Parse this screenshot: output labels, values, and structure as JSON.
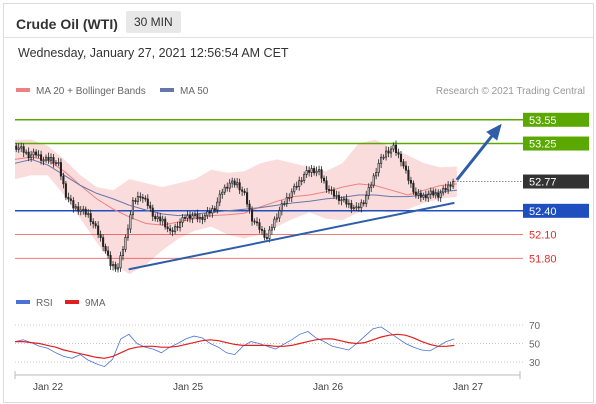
{
  "header": {
    "title": "Crude Oil (WTI)",
    "timeframe": "30 MIN",
    "datetime": "Wednesday, January 27, 2021 12:56:54 AM CET"
  },
  "legend": {
    "ma20_label": "MA 20 + Bollinger Bands",
    "ma50_label": "MA 50",
    "copyright": "Research © 2021 Trading Central"
  },
  "rsi_legend": {
    "rsi_label": "RSI",
    "ma9_label": "9MA"
  },
  "colors": {
    "target": "#5aa800",
    "pivot": "#1f4fbf",
    "support": "#e32b2b",
    "last_price": "#333333",
    "bollinger": "#f9d6d6",
    "ma20": "#ee8080",
    "ma50": "#6677aa",
    "arrow": "#2f5da8",
    "rsi": "#4a73d8",
    "rsi_ma": "#e02020"
  },
  "chart_data": [
    {
      "type": "candlestick",
      "title": "Crude Oil (WTI)",
      "x_tick_labels": [
        "Jan 22",
        "Jan 25",
        "Jan 26",
        "Jan 27"
      ],
      "ylim": [
        51.45,
        53.8
      ],
      "price_levels": [
        {
          "label": "53.55",
          "value": 53.55,
          "kind": "target"
        },
        {
          "label": "53.25",
          "value": 53.25,
          "kind": "target"
        },
        {
          "label": "52.77",
          "value": 52.77,
          "kind": "last"
        },
        {
          "label": "52.40",
          "value": 52.4,
          "kind": "pivot"
        },
        {
          "label": "52.10",
          "value": 52.1,
          "kind": "support"
        },
        {
          "label": "51.80",
          "value": 51.8,
          "kind": "support"
        }
      ],
      "trendline": {
        "from": [
          4.5,
          51.66
        ],
        "to": [
          17.4,
          52.5
        ]
      },
      "arrow": {
        "from": [
          17.5,
          52.79
        ],
        "to": [
          19.2,
          53.47
        ]
      },
      "candles_close": [
        53.18,
        53.1,
        53.12,
        53.04,
        53.06,
        52.98,
        52.6,
        52.45,
        52.41,
        52.35,
        52.18,
        51.98,
        51.72,
        51.68,
        52.05,
        52.5,
        52.6,
        52.48,
        52.3,
        52.28,
        52.12,
        52.22,
        52.32,
        52.34,
        52.3,
        52.36,
        52.44,
        52.65,
        52.75,
        52.74,
        52.6,
        52.3,
        52.18,
        52.05,
        52.28,
        52.46,
        52.6,
        52.72,
        52.86,
        52.92,
        52.89,
        52.7,
        52.6,
        52.54,
        52.48,
        52.42,
        52.52,
        52.74,
        53.0,
        53.14,
        53.2,
        53.05,
        52.8,
        52.6,
        52.58,
        52.62,
        52.6,
        52.68,
        52.77
      ],
      "ma20": [
        53.05,
        53.08,
        53.04,
        52.9,
        52.72,
        52.55,
        52.42,
        52.32,
        52.24,
        52.22,
        52.26,
        52.3,
        52.34,
        52.35,
        52.37,
        52.45,
        52.52,
        52.58,
        52.6,
        52.64,
        52.7,
        52.74,
        52.72,
        52.66,
        52.6,
        52.66,
        52.72,
        52.74
      ],
      "ma50": [
        53.0,
        53.05,
        52.98,
        52.85,
        52.72,
        52.62,
        52.55,
        52.47,
        52.41,
        52.36,
        52.34,
        52.36,
        52.38,
        52.4,
        52.42,
        52.44,
        52.47,
        52.5,
        52.52,
        52.55,
        52.57,
        52.6,
        52.6,
        52.58,
        52.58,
        52.6,
        52.64,
        52.66
      ],
      "bb_upper": [
        53.3,
        53.3,
        53.22,
        53.05,
        52.85,
        52.7,
        52.66,
        52.8,
        52.75,
        52.7,
        52.75,
        52.8,
        52.92,
        52.88,
        52.9,
        53.0,
        53.05,
        53.0,
        52.95,
        52.9,
        53.0,
        53.25,
        53.3,
        53.2,
        53.1,
        53.0,
        52.95,
        52.96
      ],
      "bb_lower": [
        52.8,
        52.85,
        52.85,
        52.6,
        52.3,
        52.0,
        51.72,
        51.6,
        51.72,
        51.9,
        52.05,
        52.15,
        52.2,
        52.1,
        52.05,
        52.1,
        52.2,
        52.3,
        52.38,
        52.3,
        52.28,
        52.38,
        52.4,
        52.38,
        52.42,
        52.5,
        52.55,
        52.58
      ]
    },
    {
      "type": "line",
      "title": "RSI",
      "yticks": [
        70,
        50,
        30
      ],
      "ylim": [
        20,
        80
      ],
      "series": [
        {
          "name": "RSI",
          "values": [
            52,
            54,
            51,
            47,
            45,
            40,
            36,
            34,
            38,
            32,
            28,
            25,
            33,
            55,
            60,
            50,
            46,
            44,
            40,
            46,
            50,
            55,
            58,
            56,
            50,
            46,
            40,
            38,
            47,
            52,
            50,
            47,
            44,
            49,
            54,
            60,
            63,
            56,
            52,
            47,
            45,
            43,
            50,
            58,
            66,
            68,
            62,
            56,
            50,
            46,
            43,
            42,
            47,
            52,
            55
          ]
        },
        {
          "name": "9MA",
          "values": [
            52,
            52,
            51,
            50,
            48,
            46,
            43,
            41,
            39,
            37,
            35,
            34,
            36,
            40,
            44,
            46,
            47,
            47,
            46,
            46,
            47,
            49,
            51,
            53,
            54,
            53,
            51,
            49,
            48,
            48,
            48,
            48,
            47,
            47,
            48,
            50,
            52,
            54,
            55,
            55,
            53,
            51,
            50,
            51,
            54,
            57,
            59,
            60,
            59,
            56,
            52,
            49,
            47,
            47,
            48
          ]
        }
      ]
    }
  ]
}
